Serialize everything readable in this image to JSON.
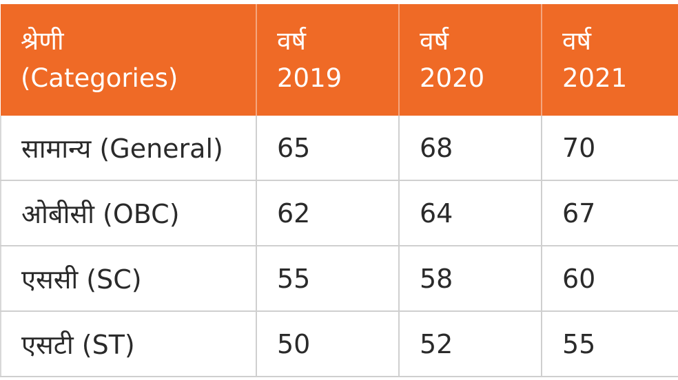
{
  "table": {
    "header": {
      "category": [
        "श्रेणी",
        "(Categories)"
      ],
      "years": [
        [
          "वर्ष",
          "2019"
        ],
        [
          "वर्ष",
          "2020"
        ],
        [
          "वर्ष",
          "2021"
        ]
      ]
    },
    "rows": [
      {
        "label": "सामान्य (General)",
        "values": [
          "65",
          "68",
          "70"
        ]
      },
      {
        "label": "ओबीसी (OBC)",
        "values": [
          "62",
          "64",
          "67"
        ]
      },
      {
        "label": "एससी (SC)",
        "values": [
          "55",
          "58",
          "60"
        ]
      },
      {
        "label": "एसटी (ST)",
        "values": [
          "50",
          "52",
          "55"
        ]
      }
    ]
  },
  "colors": {
    "header_bg": "#ef6a26",
    "header_text": "#ffffff",
    "cell_text": "#2a2a2a",
    "grid": "#cfcfcf"
  }
}
